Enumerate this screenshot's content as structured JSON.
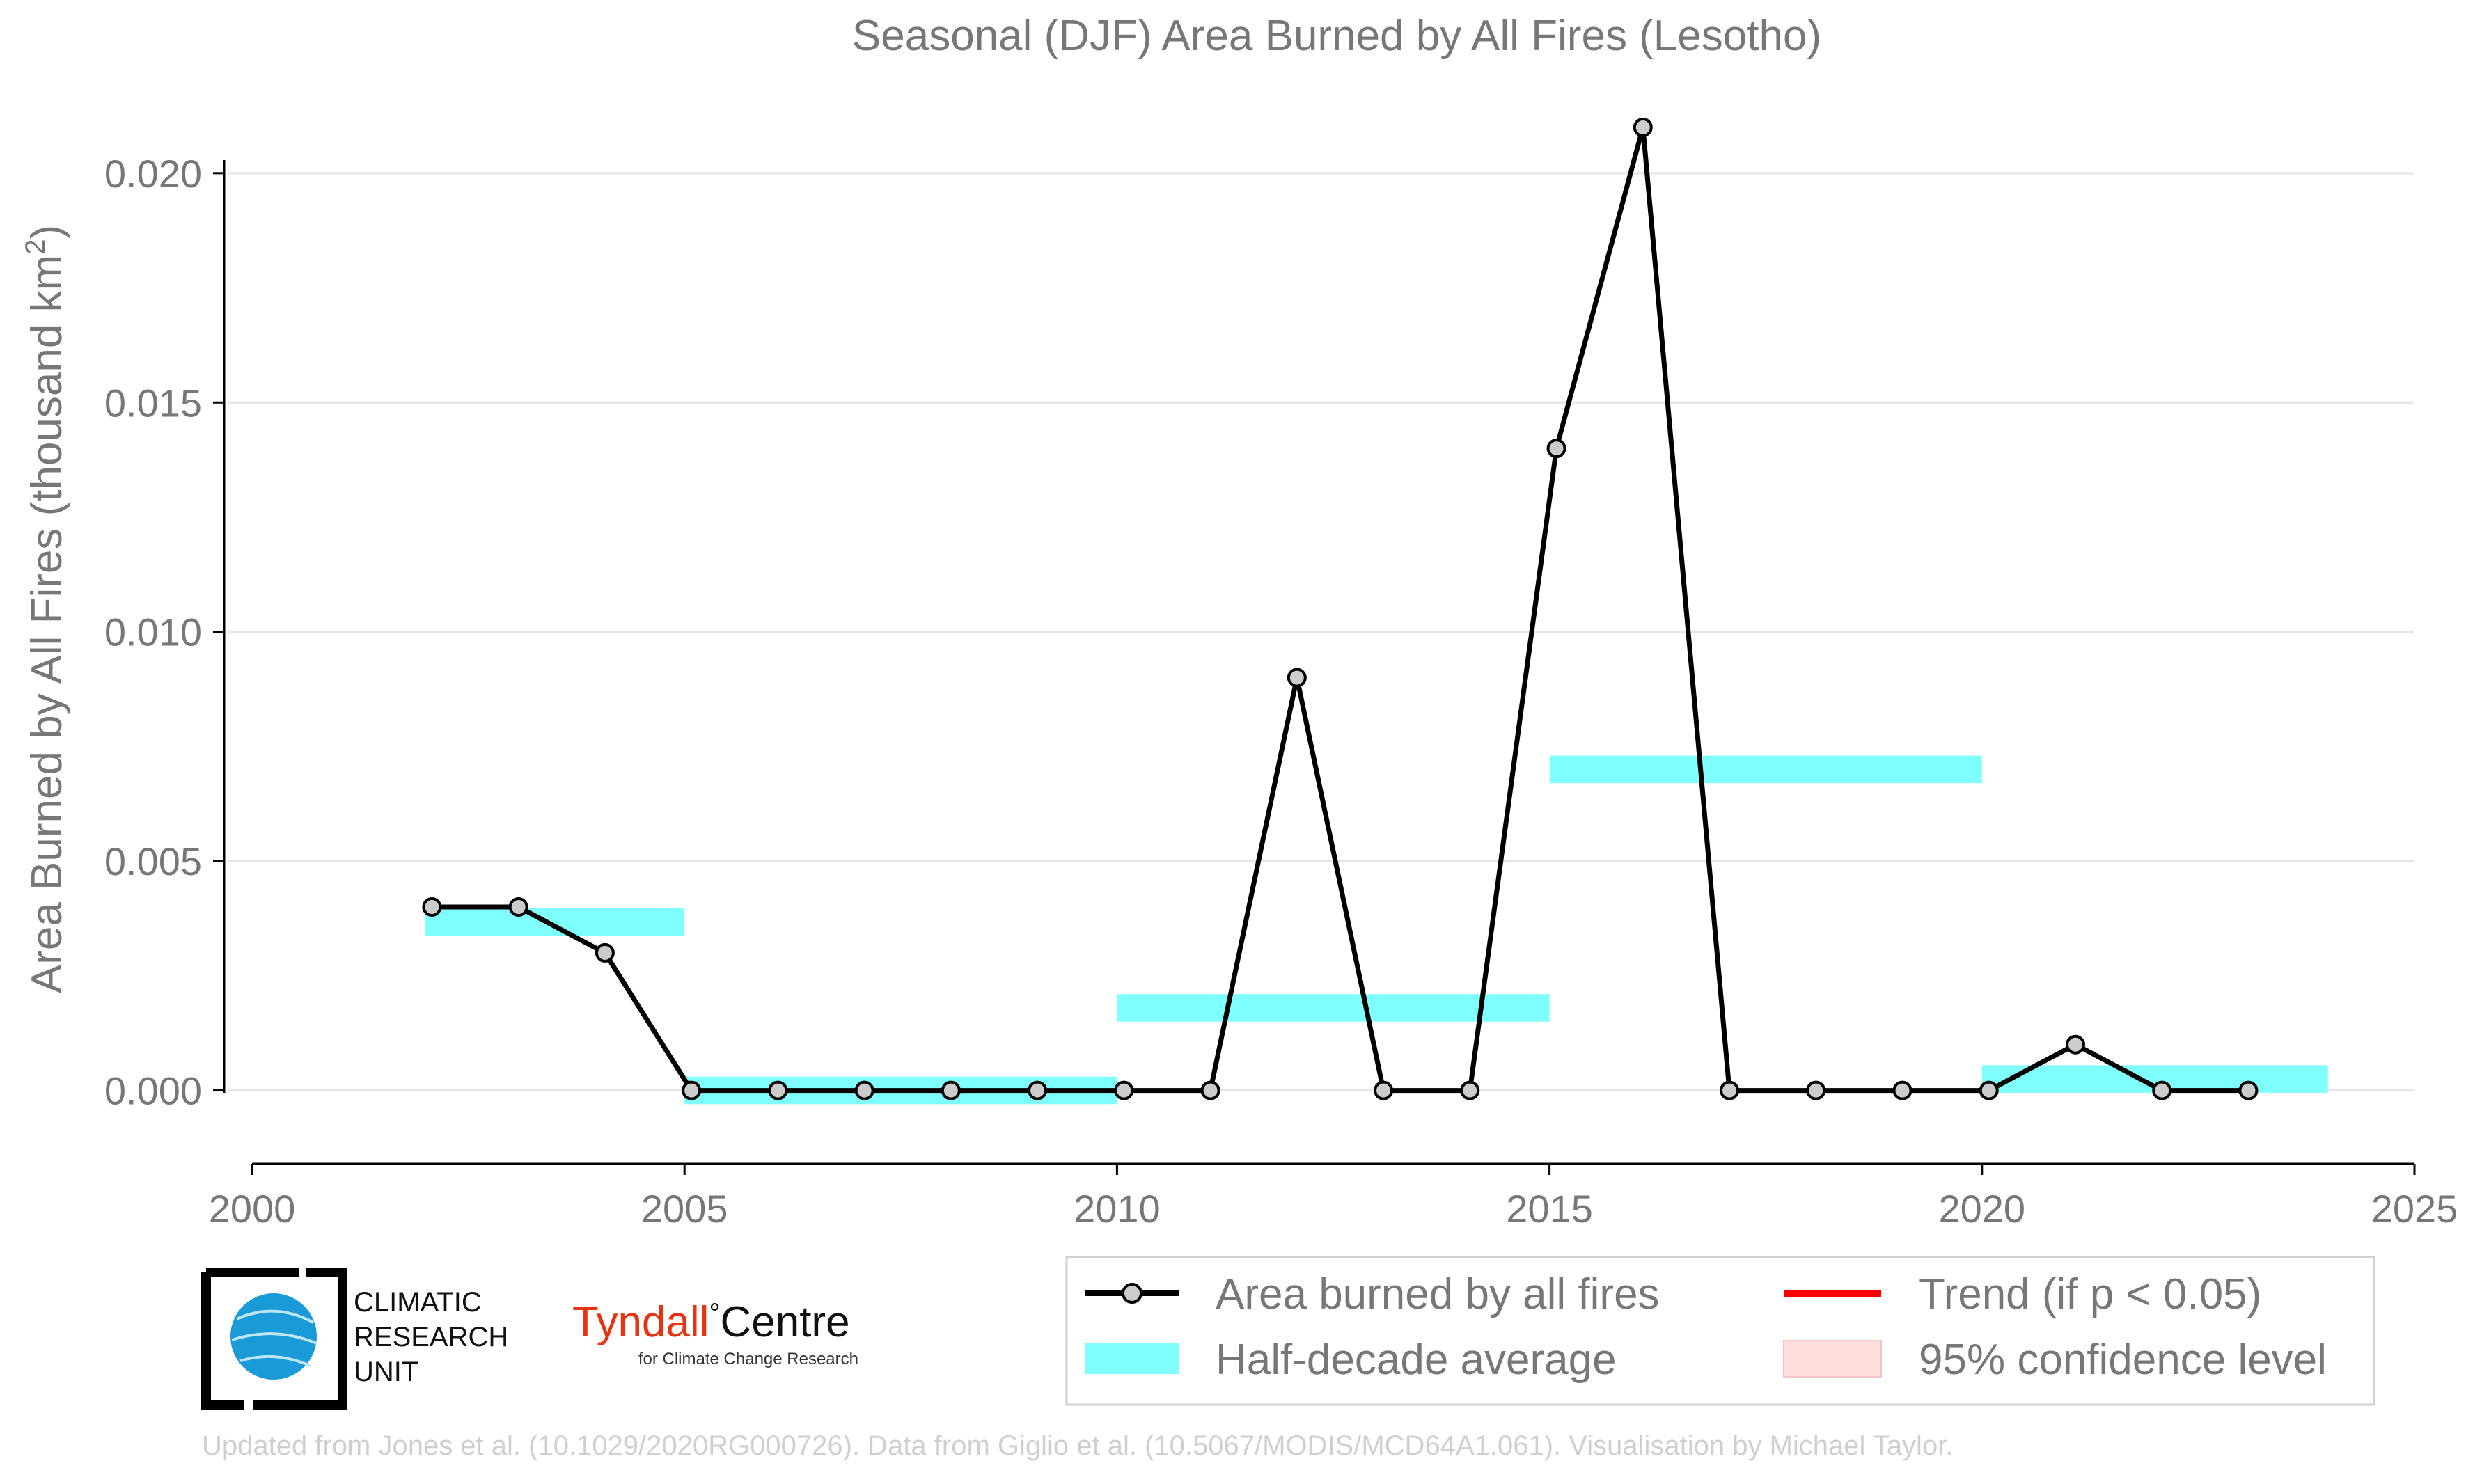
{
  "chart_data": {
    "type": "line",
    "title": "Seasonal (DJF) Area Burned by All Fires (Lesotho)",
    "xlabel": "",
    "ylabel": "Area Burned by All Fires (thousand km",
    "ylabel_superscript": "2",
    "ylabel_suffix": ")",
    "xlim": [
      2000,
      2025
    ],
    "ylim": [
      -0.0016,
      0.0215
    ],
    "x_ticks": [
      2000,
      2005,
      2010,
      2015,
      2020,
      2025
    ],
    "x_tick_labels": [
      "2000",
      "2005",
      "2010",
      "2015",
      "2020",
      "2025"
    ],
    "y_ticks": [
      0.0,
      0.005,
      0.01,
      0.015,
      0.02
    ],
    "y_tick_labels": [
      "0.000",
      "0.005",
      "0.010",
      "0.015",
      "0.020"
    ],
    "grid": "horizontal",
    "legend_position": "bottom-right",
    "series": [
      {
        "name": "Area burned by all fires",
        "type": "line",
        "color": "#000000",
        "marker_fill": "#cccccc",
        "x": [
          2002,
          2003,
          2004,
          2005,
          2006,
          2007,
          2008,
          2009,
          2010,
          2011,
          2012,
          2013,
          2014,
          2015,
          2016,
          2017,
          2018,
          2019,
          2020,
          2021,
          2022,
          2023
        ],
        "y": [
          0.004,
          0.004,
          0.003,
          0.0,
          0.0,
          0.0,
          0.0,
          0.0,
          0.0,
          0.0,
          0.009,
          0.0,
          0.0,
          0.014,
          0.021,
          0.0,
          0.0,
          0.0,
          0.0,
          0.001,
          0.0,
          0.0
        ]
      },
      {
        "name": "Half-decade average",
        "type": "step",
        "color": "#80ffff",
        "segments": [
          {
            "x0": 2002,
            "x1": 2005,
            "y": 0.00367
          },
          {
            "x0": 2005,
            "x1": 2010,
            "y": 0.0
          },
          {
            "x0": 2010,
            "x1": 2015,
            "y": 0.0018
          },
          {
            "x0": 2015,
            "x1": 2020,
            "y": 0.007
          },
          {
            "x0": 2020,
            "x1": 2024,
            "y": 0.00025
          }
        ]
      }
    ],
    "legend": [
      {
        "label": "Area burned by all fires",
        "symbol": "line-marker",
        "color": "#000000"
      },
      {
        "label": "Trend (if p < 0.05)",
        "symbol": "line",
        "color": "#ff0000"
      },
      {
        "label": "Half-decade average",
        "symbol": "band",
        "color": "#80ffff"
      },
      {
        "label": "95% confidence level",
        "symbol": "box",
        "color": "#ffdede"
      }
    ]
  },
  "logos": {
    "cru_lines": [
      "CLIMATIC",
      "RESEARCH",
      "UNIT"
    ],
    "tyndall_main": "Tyndall",
    "tyndall_degree": "°",
    "tyndall_centre": "Centre",
    "tyndall_sub": "for Climate Change Research",
    "tyndall_color": "#e63312",
    "cru_globe_color": "#1a9ad6"
  },
  "credit": "Updated from Jones et al. (10.1029/2020RG000726). Data from Giglio et al. (10.5067/MODIS/MCD64A1.061). Visualisation by Michael Taylor."
}
